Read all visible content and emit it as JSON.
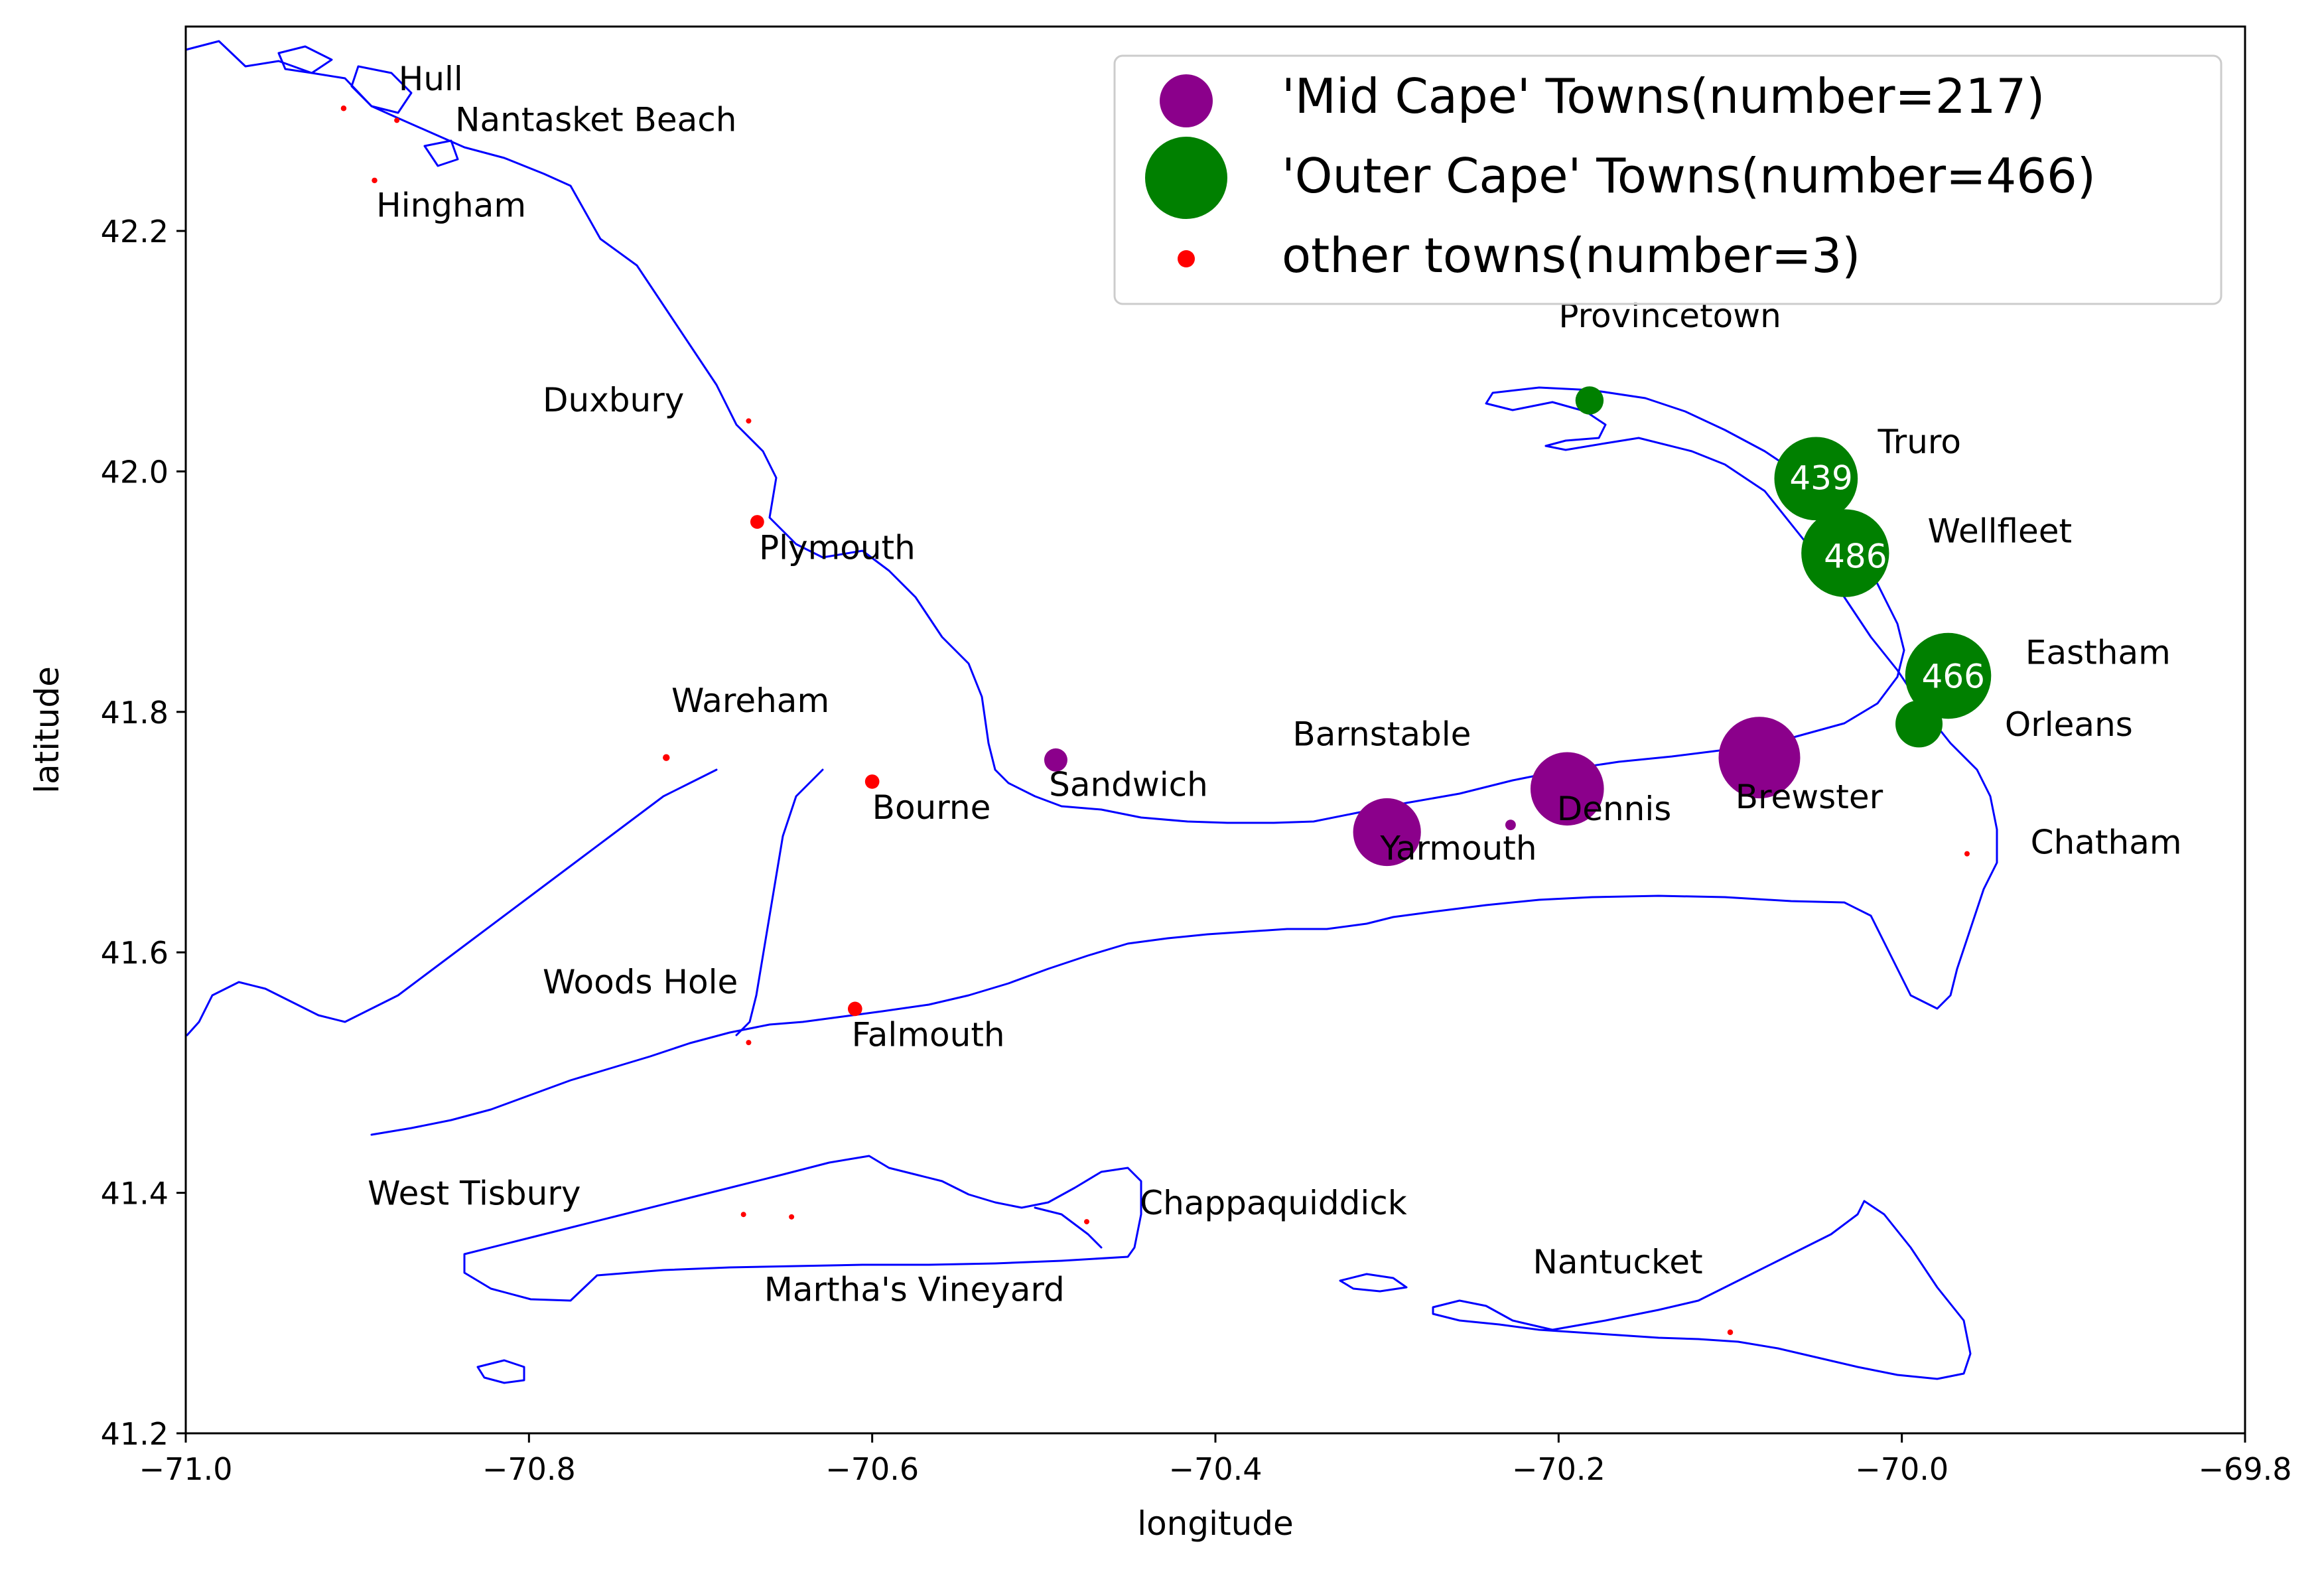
{
  "chart_data": {
    "type": "scatter",
    "title": "",
    "xlabel": "longitude",
    "ylabel": "latitude",
    "xlim": [
      -71.0,
      -69.8
    ],
    "ylim": [
      41.2,
      42.37
    ],
    "grid": false,
    "legend_placement": "top-right",
    "x_ticks": [
      {
        "value": -71.0,
        "label": "−71.0"
      },
      {
        "value": -70.8,
        "label": "−70.8"
      },
      {
        "value": -70.6,
        "label": "−70.6"
      },
      {
        "value": -70.4,
        "label": "−70.4"
      },
      {
        "value": -70.2,
        "label": "−70.2"
      },
      {
        "value": -70.0,
        "label": "−70.0"
      },
      {
        "value": -69.8,
        "label": "−69.8"
      }
    ],
    "y_ticks": [
      {
        "value": 41.2,
        "label": "41.2"
      },
      {
        "value": 41.4,
        "label": "41.4"
      },
      {
        "value": 41.6,
        "label": "41.6"
      },
      {
        "value": 41.8,
        "label": "41.8"
      },
      {
        "value": 42.0,
        "label": "42.0"
      },
      {
        "value": 42.2,
        "label": "42.2"
      }
    ],
    "colors": {
      "mid": "#8b008b",
      "outer": "#008000",
      "other": "#ff0000",
      "coast": "#0000ff"
    },
    "legend": [
      {
        "series": "mid",
        "label": "'Mid Cape' Towns(number=217)"
      },
      {
        "series": "outer",
        "label": "'Outer Cape' Towns(number=466)"
      },
      {
        "series": "other",
        "label": "other towns(number=3)"
      }
    ],
    "points": [
      {
        "lon": -70.908,
        "lat": 42.302,
        "series": "other",
        "value": 2
      },
      {
        "lon": -70.877,
        "lat": 42.292,
        "series": "other",
        "value": 1
      },
      {
        "lon": -70.89,
        "lat": 42.242,
        "series": "other",
        "value": 2
      },
      {
        "lon": -70.672,
        "lat": 42.042,
        "series": "other",
        "value": 1
      },
      {
        "lon": -70.667,
        "lat": 41.958,
        "series": "other",
        "value": 12
      },
      {
        "lon": -70.72,
        "lat": 41.762,
        "series": "other",
        "value": 3
      },
      {
        "lon": -70.6,
        "lat": 41.742,
        "series": "other",
        "value": 13
      },
      {
        "lon": -70.61,
        "lat": 41.553,
        "series": "other",
        "value": 13
      },
      {
        "lon": -70.672,
        "lat": 41.525,
        "series": "other",
        "value": 1
      },
      {
        "lon": -70.675,
        "lat": 41.382,
        "series": "other",
        "value": 1
      },
      {
        "lon": -70.647,
        "lat": 41.38,
        "series": "other",
        "value": 1
      },
      {
        "lon": -70.475,
        "lat": 41.376,
        "series": "other",
        "value": 1
      },
      {
        "lon": -70.1,
        "lat": 41.284,
        "series": "other",
        "value": 2
      },
      {
        "lon": -69.962,
        "lat": 41.682,
        "series": "other",
        "value": 1
      },
      {
        "lon": -70.493,
        "lat": 41.76,
        "series": "mid",
        "value": 34
      },
      {
        "lon": -70.228,
        "lat": 41.706,
        "series": "mid",
        "value": 7
      },
      {
        "lon": -70.3,
        "lat": 41.7,
        "series": "mid",
        "value": 290
      },
      {
        "lon": -70.195,
        "lat": 41.736,
        "series": "mid",
        "value": 340
      },
      {
        "lon": -70.083,
        "lat": 41.762,
        "series": "mid",
        "value": 420
      },
      {
        "lon": -70.182,
        "lat": 42.059,
        "series": "outer",
        "value": 50
      },
      {
        "lon": -70.05,
        "lat": 41.994,
        "series": "outer",
        "value": 439
      },
      {
        "lon": -70.033,
        "lat": 41.932,
        "series": "outer",
        "value": 486
      },
      {
        "lon": -69.973,
        "lat": 41.83,
        "series": "outer",
        "value": 466
      },
      {
        "lon": -69.99,
        "lat": 41.79,
        "series": "outer",
        "value": 140
      }
    ],
    "bubble_labels": [
      {
        "lon": -70.047,
        "lat": 41.995,
        "text": "439"
      },
      {
        "lon": -70.027,
        "lat": 41.93,
        "text": "486"
      },
      {
        "lon": -69.97,
        "lat": 41.83,
        "text": "466"
      }
    ],
    "town_labels": [
      {
        "lon": -70.876,
        "lat": 42.317,
        "text": "Hull"
      },
      {
        "lon": -70.843,
        "lat": 42.283,
        "text": "Nantasket Beach"
      },
      {
        "lon": -70.889,
        "lat": 42.212,
        "text": "Hingham"
      },
      {
        "lon": -70.792,
        "lat": 42.05,
        "text": "Duxbury"
      },
      {
        "lon": -70.666,
        "lat": 41.927,
        "text": "Plymouth"
      },
      {
        "lon": -70.2,
        "lat": 42.12,
        "text": "Provincetown"
      },
      {
        "lon": -70.014,
        "lat": 42.015,
        "text": "Truro"
      },
      {
        "lon": -69.985,
        "lat": 41.941,
        "text": "Wellfleet"
      },
      {
        "lon": -69.928,
        "lat": 41.84,
        "text": "Eastham"
      },
      {
        "lon": -69.94,
        "lat": 41.78,
        "text": "Orleans"
      },
      {
        "lon": -69.925,
        "lat": 41.682,
        "text": "Chatham"
      },
      {
        "lon": -70.097,
        "lat": 41.72,
        "text": "Brewster"
      },
      {
        "lon": -70.201,
        "lat": 41.71,
        "text": "Dennis"
      },
      {
        "lon": -70.304,
        "lat": 41.677,
        "text": "Yarmouth"
      },
      {
        "lon": -70.355,
        "lat": 41.772,
        "text": "Barnstable"
      },
      {
        "lon": -70.497,
        "lat": 41.73,
        "text": "Sandwich"
      },
      {
        "lon": -70.6,
        "lat": 41.711,
        "text": "Bourne"
      },
      {
        "lon": -70.717,
        "lat": 41.8,
        "text": "Wareham"
      },
      {
        "lon": -70.792,
        "lat": 41.566,
        "text": "Woods Hole"
      },
      {
        "lon": -70.612,
        "lat": 41.522,
        "text": "Falmouth"
      },
      {
        "lon": -70.894,
        "lat": 41.39,
        "text": "West Tisbury"
      },
      {
        "lon": -70.444,
        "lat": 41.382,
        "text": "Chappaquiddick"
      },
      {
        "lon": -70.663,
        "lat": 41.31,
        "text": "Martha's Vineyard"
      },
      {
        "lon": -70.215,
        "lat": 41.333,
        "text": "Nantucket"
      }
    ]
  }
}
